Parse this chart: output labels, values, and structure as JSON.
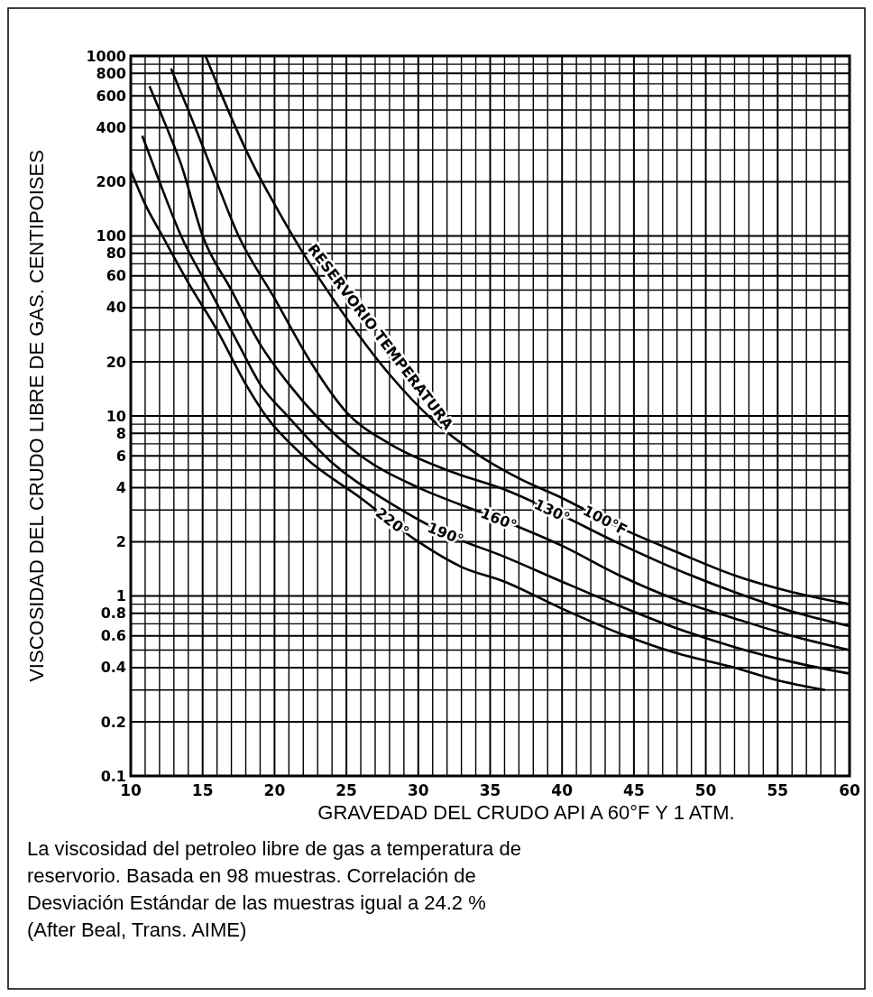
{
  "chart_data": {
    "type": "line",
    "xlabel": "GRAVEDAD DEL CRUDO API A 60°F Y 1 ATM.",
    "ylabel": "VISCOSIDAD DEL CRUDO LIBRE DE GAS. CENTIPOISES",
    "log": "y",
    "grid": true,
    "xlim": [
      10,
      60
    ],
    "xticks": [
      10,
      {
        "value": 11,
        "label": null
      },
      {
        "value": 12,
        "label": null
      },
      {
        "value": 13,
        "label": null
      },
      {
        "value": 14,
        "label": null
      },
      15,
      {
        "value": 16,
        "label": null
      },
      {
        "value": 17,
        "label": null
      },
      {
        "value": 18,
        "label": null
      },
      {
        "value": 19,
        "label": null
      },
      20,
      {
        "value": 21,
        "label": null
      },
      {
        "value": 22,
        "label": null
      },
      {
        "value": 23,
        "label": null
      },
      {
        "value": 24,
        "label": null
      },
      25,
      {
        "value": 26,
        "label": null
      },
      {
        "value": 27,
        "label": null
      },
      {
        "value": 28,
        "label": null
      },
      {
        "value": 29,
        "label": null
      },
      30,
      {
        "value": 31,
        "label": null
      },
      {
        "value": 32,
        "label": null
      },
      {
        "value": 33,
        "label": null
      },
      {
        "value": 34,
        "label": null
      },
      35,
      {
        "value": 36,
        "label": null
      },
      {
        "value": 37,
        "label": null
      },
      {
        "value": 38,
        "label": null
      },
      {
        "value": 39,
        "label": null
      },
      40,
      {
        "value": 41,
        "label": null
      },
      {
        "value": 42,
        "label": null
      },
      {
        "value": 43,
        "label": null
      },
      {
        "value": 44,
        "label": null
      },
      45,
      {
        "value": 46,
        "label": null
      },
      {
        "value": 47,
        "label": null
      },
      {
        "value": 48,
        "label": null
      },
      {
        "value": 49,
        "label": null
      },
      50,
      {
        "value": 51,
        "label": null
      },
      {
        "value": 52,
        "label": null
      },
      {
        "value": 53,
        "label": null
      },
      {
        "value": 54,
        "label": null
      },
      55,
      {
        "value": 56,
        "label": null
      },
      {
        "value": 57,
        "label": null
      },
      {
        "value": 58,
        "label": null
      },
      {
        "value": 59,
        "label": null
      },
      60
    ],
    "ylim": [
      0.1,
      1000
    ],
    "yticks": [
      0.1,
      0.2,
      {
        "value": 0.3,
        "label": null
      },
      0.4,
      {
        "value": 0.5,
        "label": null
      },
      0.6,
      {
        "value": 0.7,
        "label": null
      },
      0.8,
      {
        "value": 0.9,
        "label": null
      },
      1,
      2,
      {
        "value": 3,
        "label": null
      },
      4,
      {
        "value": 5,
        "label": null
      },
      6,
      {
        "value": 7,
        "label": null
      },
      8,
      {
        "value": 9,
        "label": null
      },
      10,
      20,
      {
        "value": 30,
        "label": null
      },
      40,
      {
        "value": 50,
        "label": null
      },
      60,
      {
        "value": 70,
        "label": null
      },
      80,
      {
        "value": 90,
        "label": null
      },
      100,
      200,
      {
        "value": 300,
        "label": null
      },
      400,
      {
        "value": 500,
        "label": null
      },
      600,
      {
        "value": 700,
        "label": null
      },
      800,
      {
        "value": 900,
        "label": null
      },
      1000
    ],
    "series": [
      {
        "name": "100°F",
        "color": "#000000",
        "x": [
          15.2,
          16,
          17.3,
          18.5,
          20,
          22,
          25,
          28,
          31,
          34,
          37,
          40,
          44,
          48,
          52,
          56,
          60
        ],
        "values": [
          1000,
          700,
          400,
          250,
          150,
          80,
          35,
          17,
          9.5,
          6.2,
          4.5,
          3.5,
          2.4,
          1.75,
          1.3,
          1.05,
          0.9
        ]
      },
      {
        "name": "130°",
        "color": "#000000",
        "x": [
          12.8,
          14,
          15.5,
          17.5,
          20,
          22.5,
          25,
          28,
          32,
          36,
          40,
          44,
          48,
          52,
          56,
          60
        ],
        "values": [
          850,
          500,
          250,
          100,
          45,
          20,
          10.5,
          7,
          5,
          3.9,
          2.8,
          1.95,
          1.4,
          1.05,
          0.82,
          0.68
        ]
      },
      {
        "name": "160°",
        "color": "#000000",
        "x": [
          11.3,
          12.5,
          13.5,
          15,
          17,
          19,
          21,
          22.9,
          26,
          30,
          33,
          36,
          40,
          44,
          48,
          52,
          56,
          60
        ],
        "values": [
          680,
          400,
          250,
          100,
          50,
          25,
          15,
          10,
          6,
          4,
          3.2,
          2.6,
          1.9,
          1.3,
          0.95,
          0.75,
          0.6,
          0.5
        ]
      },
      {
        "name": "190°",
        "color": "#000000",
        "x": [
          10.8,
          12,
          13.5,
          15.5,
          17.5,
          19,
          20.9,
          24,
          28,
          32,
          36,
          40,
          44,
          48,
          52,
          56,
          60
        ],
        "values": [
          360,
          200,
          100,
          50,
          25,
          15,
          10,
          5.5,
          3.3,
          2.2,
          1.65,
          1.2,
          0.88,
          0.66,
          0.52,
          0.43,
          0.37
        ]
      },
      {
        "name": "220°",
        "color": "#000000",
        "x": [
          10,
          11,
          12.2,
          14,
          16,
          18,
          19.4,
          22,
          26,
          30,
          33,
          36,
          40,
          44,
          48,
          52,
          55,
          58.3
        ],
        "values": [
          230,
          150,
          100,
          55,
          30,
          15,
          10,
          6,
          3.5,
          2,
          1.45,
          1.2,
          0.85,
          0.62,
          0.48,
          0.4,
          0.34,
          0.3
        ]
      }
    ],
    "annotations": [
      "RESERVORIO TEMPERATURA",
      "La viscosidad del petroleo libre de gas a temperatura de reservorio. Basada en 98 muestras. Correlación de Desviación Estándar de las muestras igual a 24.2 % (After Beal, Trans. AIME)"
    ]
  }
}
